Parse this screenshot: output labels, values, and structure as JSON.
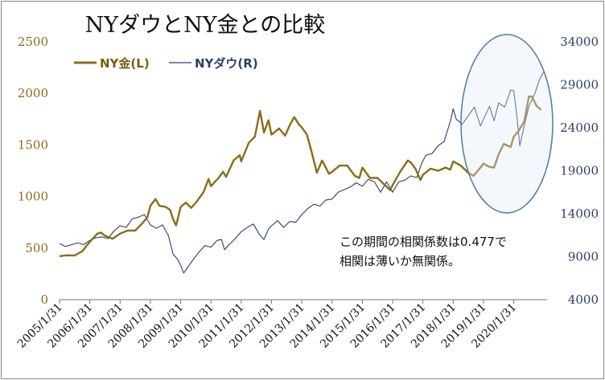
{
  "chart_data": {
    "type": "line",
    "title": "NYダウとNY金との比較",
    "x_tick_labels": [
      "2005/1/31",
      "2006/1/31",
      "2007/1/31",
      "2008/1/31",
      "2009/1/31",
      "2010/1/31",
      "2011/1/31",
      "2012/1/31",
      "2013/1/31",
      "2014/1/31",
      "2015/1/31",
      "2016/1/31",
      "2017/1/31",
      "2018/1/31",
      "2019/1/31",
      "2020/1/31"
    ],
    "y_left": {
      "ticks": [
        0,
        500,
        1000,
        1500,
        2000,
        2500
      ],
      "ylim": [
        0,
        2500
      ]
    },
    "y_right": {
      "ticks": [
        4000,
        9000,
        14000,
        19000,
        24000,
        29000,
        34000
      ],
      "ylim": [
        4000,
        34000
      ]
    },
    "x_range": [
      2005.0,
      2021.1
    ],
    "series": [
      {
        "name": "NY金(L)",
        "legend_label": "NY金(L)",
        "axis": "left",
        "color": "#8a6d18",
        "points": [
          [
            2005.0,
            422
          ],
          [
            2005.25,
            430
          ],
          [
            2005.5,
            428
          ],
          [
            2005.75,
            470
          ],
          [
            2006.0,
            560
          ],
          [
            2006.25,
            640
          ],
          [
            2006.37,
            650
          ],
          [
            2006.5,
            620
          ],
          [
            2006.75,
            590
          ],
          [
            2007.0,
            640
          ],
          [
            2007.25,
            670
          ],
          [
            2007.5,
            670
          ],
          [
            2007.75,
            745
          ],
          [
            2007.9,
            800
          ],
          [
            2008.0,
            910
          ],
          [
            2008.17,
            975
          ],
          [
            2008.3,
            910
          ],
          [
            2008.5,
            900
          ],
          [
            2008.65,
            870
          ],
          [
            2008.75,
            780
          ],
          [
            2008.85,
            720
          ],
          [
            2009.0,
            900
          ],
          [
            2009.17,
            940
          ],
          [
            2009.35,
            890
          ],
          [
            2009.5,
            940
          ],
          [
            2009.75,
            1040
          ],
          [
            2009.92,
            1170
          ],
          [
            2010.0,
            1100
          ],
          [
            2010.25,
            1180
          ],
          [
            2010.4,
            1240
          ],
          [
            2010.5,
            1190
          ],
          [
            2010.75,
            1350
          ],
          [
            2010.95,
            1400
          ],
          [
            2011.0,
            1340
          ],
          [
            2011.25,
            1520
          ],
          [
            2011.45,
            1580
          ],
          [
            2011.62,
            1830
          ],
          [
            2011.75,
            1620
          ],
          [
            2011.9,
            1740
          ],
          [
            2012.0,
            1600
          ],
          [
            2012.25,
            1660
          ],
          [
            2012.45,
            1590
          ],
          [
            2012.6,
            1690
          ],
          [
            2012.75,
            1770
          ],
          [
            2012.9,
            1700
          ],
          [
            2013.0,
            1670
          ],
          [
            2013.17,
            1600
          ],
          [
            2013.3,
            1460
          ],
          [
            2013.5,
            1230
          ],
          [
            2013.67,
            1350
          ],
          [
            2013.9,
            1220
          ],
          [
            2014.0,
            1240
          ],
          [
            2014.25,
            1300
          ],
          [
            2014.5,
            1300
          ],
          [
            2014.75,
            1200
          ],
          [
            2014.9,
            1180
          ],
          [
            2015.0,
            1280
          ],
          [
            2015.25,
            1180
          ],
          [
            2015.5,
            1180
          ],
          [
            2015.75,
            1110
          ],
          [
            2015.92,
            1060
          ],
          [
            2016.0,
            1110
          ],
          [
            2016.25,
            1240
          ],
          [
            2016.5,
            1350
          ],
          [
            2016.6,
            1330
          ],
          [
            2016.75,
            1270
          ],
          [
            2016.92,
            1160
          ],
          [
            2017.0,
            1210
          ],
          [
            2017.25,
            1270
          ],
          [
            2017.5,
            1250
          ],
          [
            2017.75,
            1280
          ],
          [
            2017.9,
            1260
          ],
          [
            2018.0,
            1340
          ],
          [
            2018.25,
            1300
          ],
          [
            2018.5,
            1230
          ],
          [
            2018.67,
            1200
          ],
          [
            2018.9,
            1280
          ],
          [
            2019.0,
            1320
          ],
          [
            2019.17,
            1290
          ],
          [
            2019.35,
            1280
          ],
          [
            2019.5,
            1410
          ],
          [
            2019.67,
            1510
          ],
          [
            2019.9,
            1480
          ],
          [
            2020.0,
            1580
          ],
          [
            2020.17,
            1640
          ],
          [
            2020.35,
            1730
          ],
          [
            2020.5,
            1970
          ],
          [
            2020.6,
            1970
          ],
          [
            2020.75,
            1880
          ],
          [
            2020.9,
            1840
          ]
        ]
      },
      {
        "name": "NYダウ(R)",
        "legend_label": "NYダウ(R)",
        "axis": "right",
        "color": "#2c3e70",
        "points": [
          [
            2005.0,
            10500
          ],
          [
            2005.2,
            10200
          ],
          [
            2005.4,
            10400
          ],
          [
            2005.6,
            10600
          ],
          [
            2005.8,
            10400
          ],
          [
            2006.0,
            10900
          ],
          [
            2006.2,
            11200
          ],
          [
            2006.4,
            11300
          ],
          [
            2006.6,
            11100
          ],
          [
            2006.8,
            12000
          ],
          [
            2007.0,
            12600
          ],
          [
            2007.2,
            12400
          ],
          [
            2007.4,
            13400
          ],
          [
            2007.6,
            13600
          ],
          [
            2007.8,
            13900
          ],
          [
            2008.0,
            12700
          ],
          [
            2008.2,
            12300
          ],
          [
            2008.4,
            12700
          ],
          [
            2008.6,
            11400
          ],
          [
            2008.75,
            9300
          ],
          [
            2008.9,
            8700
          ],
          [
            2009.0,
            8000
          ],
          [
            2009.1,
            7100
          ],
          [
            2009.2,
            7600
          ],
          [
            2009.4,
            8600
          ],
          [
            2009.6,
            9500
          ],
          [
            2009.8,
            10300
          ],
          [
            2010.0,
            10100
          ],
          [
            2010.2,
            10900
          ],
          [
            2010.35,
            11000
          ],
          [
            2010.45,
            9800
          ],
          [
            2010.6,
            10400
          ],
          [
            2010.8,
            11100
          ],
          [
            2011.0,
            11900
          ],
          [
            2011.2,
            12400
          ],
          [
            2011.4,
            12800
          ],
          [
            2011.6,
            11600
          ],
          [
            2011.75,
            11000
          ],
          [
            2011.9,
            12200
          ],
          [
            2012.0,
            12600
          ],
          [
            2012.2,
            13200
          ],
          [
            2012.4,
            12400
          ],
          [
            2012.6,
            13100
          ],
          [
            2012.8,
            13000
          ],
          [
            2013.0,
            13900
          ],
          [
            2013.2,
            14600
          ],
          [
            2013.4,
            15100
          ],
          [
            2013.6,
            14900
          ],
          [
            2013.8,
            15600
          ],
          [
            2014.0,
            15700
          ],
          [
            2014.2,
            16500
          ],
          [
            2014.4,
            16800
          ],
          [
            2014.6,
            17100
          ],
          [
            2014.8,
            17600
          ],
          [
            2015.0,
            17200
          ],
          [
            2015.2,
            18000
          ],
          [
            2015.4,
            17700
          ],
          [
            2015.6,
            16500
          ],
          [
            2015.8,
            17700
          ],
          [
            2016.0,
            16500
          ],
          [
            2016.2,
            17700
          ],
          [
            2016.4,
            17900
          ],
          [
            2016.6,
            18400
          ],
          [
            2016.8,
            18200
          ],
          [
            2016.95,
            19800
          ],
          [
            2017.1,
            20800
          ],
          [
            2017.3,
            21000
          ],
          [
            2017.5,
            21900
          ],
          [
            2017.7,
            22400
          ],
          [
            2017.9,
            24700
          ],
          [
            2018.0,
            26200
          ],
          [
            2018.1,
            25000
          ],
          [
            2018.3,
            24400
          ],
          [
            2018.5,
            25400
          ],
          [
            2018.7,
            26400
          ],
          [
            2018.9,
            24200
          ],
          [
            2019.0,
            25000
          ],
          [
            2019.2,
            26500
          ],
          [
            2019.35,
            24800
          ],
          [
            2019.5,
            26900
          ],
          [
            2019.7,
            26400
          ],
          [
            2019.9,
            28400
          ],
          [
            2020.0,
            28300
          ],
          [
            2020.1,
            25400
          ],
          [
            2020.2,
            21900
          ],
          [
            2020.35,
            24300
          ],
          [
            2020.5,
            26500
          ],
          [
            2020.7,
            28000
          ],
          [
            2020.85,
            29600
          ],
          [
            2021.0,
            30600
          ]
        ]
      }
    ],
    "annotation": [
      "この期間の相関係数は0.477で",
      "相関は薄いか無関係。"
    ]
  }
}
